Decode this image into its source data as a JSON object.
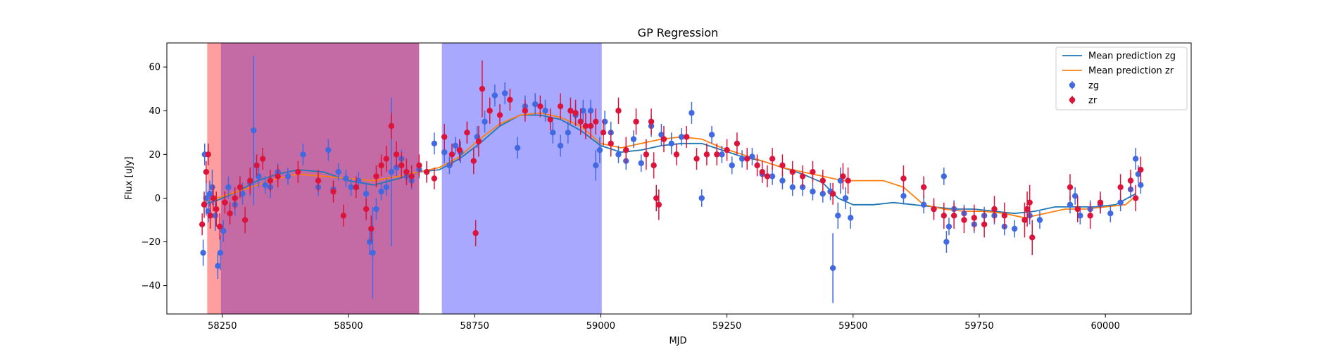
{
  "chart_data": {
    "type": "scatter",
    "title": "GP Regression",
    "xlabel": "MJD",
    "ylabel": "Flux [uJy]",
    "xlim": [
      58140,
      60170
    ],
    "ylim": [
      -53,
      71
    ],
    "xticks": [
      58250,
      58500,
      58750,
      59000,
      59250,
      59500,
      59750,
      60000
    ],
    "yticks": [
      -40,
      -20,
      0,
      20,
      40,
      60
    ],
    "grid": false,
    "legend_position": "top-right",
    "shaded_regions": [
      {
        "x0": 58220,
        "x1": 58247,
        "color": "#ff9e9e"
      },
      {
        "x0": 58247,
        "x1": 58640,
        "color": "#c46aa4"
      },
      {
        "x0": 58685,
        "x1": 59002,
        "color": "#a8a8ff"
      }
    ],
    "series": [
      {
        "name": "Mean prediction zg",
        "kind": "line",
        "color": "#1f77b4",
        "x": [
          58210,
          58240,
          58280,
          58320,
          58360,
          58400,
          58450,
          58500,
          58550,
          58600,
          58640,
          58680,
          58720,
          58760,
          58800,
          58840,
          58880,
          58920,
          58960,
          59000,
          59040,
          59080,
          59120,
          59160,
          59200,
          59240,
          59280,
          59320,
          59360,
          59400,
          59440,
          59470,
          59500,
          59540,
          59580,
          59620,
          59660,
          59700,
          59740,
          59780,
          59820,
          59860,
          59900,
          59940,
          59980,
          60020,
          60060
        ],
        "y": [
          -3,
          -1,
          3,
          8,
          11,
          13,
          12,
          8,
          6,
          9,
          12,
          13,
          18,
          25,
          33,
          38,
          38,
          36,
          31,
          24,
          21,
          22,
          24,
          25,
          25,
          22,
          19,
          17,
          14,
          11,
          7,
          0,
          -3,
          -3,
          -2,
          -3,
          -4,
          -5,
          -5,
          -6,
          -7,
          -6,
          -4,
          -4,
          -4,
          -3,
          2
        ]
      },
      {
        "name": "Mean prediction zr",
        "kind": "line",
        "color": "#ff7f0e",
        "x": [
          58210,
          58240,
          58280,
          58320,
          58360,
          58400,
          58450,
          58500,
          58550,
          58600,
          58640,
          58680,
          58720,
          58760,
          58800,
          58840,
          58880,
          58920,
          58960,
          59000,
          59040,
          59080,
          59120,
          59160,
          59200,
          59240,
          59280,
          59320,
          59360,
          59400,
          59440,
          59480,
          59520,
          59560,
          59600,
          59640,
          59680,
          59720,
          59760,
          59800,
          59840,
          59880,
          59920,
          59960,
          60000,
          60040,
          60060
        ],
        "y": [
          -2,
          0,
          3,
          6,
          9,
          11,
          10,
          9,
          8,
          10,
          12,
          14,
          19,
          27,
          34,
          38,
          39,
          37,
          33,
          25,
          23,
          25,
          27,
          28,
          27,
          23,
          20,
          17,
          14,
          12,
          10,
          8,
          8,
          8,
          5,
          -3,
          -5,
          -6,
          -6,
          -7,
          -9,
          -7,
          -5,
          -5,
          -4,
          -3,
          1
        ]
      },
      {
        "name": "zg",
        "kind": "errorbar",
        "color": "#4169e1",
        "x": [
          58212,
          58215,
          58218,
          58222,
          58225,
          58230,
          58236,
          58241,
          58246,
          58252,
          58262,
          58275,
          58290,
          58305,
          58312,
          58322,
          58335,
          58345,
          58360,
          58380,
          58410,
          58440,
          58460,
          58470,
          58480,
          58495,
          58505,
          58520,
          58535,
          58542,
          58548,
          58555,
          58565,
          58575,
          58585,
          58595,
          58605,
          58615,
          58625,
          58640,
          58655,
          58670,
          58690,
          58700,
          58712,
          58722,
          58735,
          58755,
          58770,
          58790,
          58810,
          58835,
          58850,
          58870,
          58890,
          58905,
          58920,
          58935,
          58950,
          58965,
          58980,
          58990,
          58998,
          59008,
          59020,
          59035,
          59050,
          59065,
          59080,
          59100,
          59120,
          59140,
          59160,
          59180,
          59200,
          59220,
          59240,
          59260,
          59280,
          59300,
          59320,
          59340,
          59360,
          59380,
          59400,
          59420,
          59440,
          59455,
          59460,
          59470,
          59475,
          59485,
          59495,
          59600,
          59640,
          59660,
          59680,
          59685,
          59690,
          59700,
          59720,
          59740,
          59760,
          59780,
          59800,
          59820,
          59850,
          59870,
          59930,
          59940,
          59950,
          59970,
          59990,
          60010,
          60030,
          60050,
          60060,
          60065,
          60070
        ],
        "y": [
          -25,
          20,
          0,
          -6,
          2,
          5,
          -8,
          -31,
          -25,
          -15,
          5,
          -3,
          2,
          7,
          31,
          10,
          6,
          5,
          12,
          10,
          20,
          5,
          22,
          4,
          12,
          9,
          5,
          8,
          2,
          -20,
          -25,
          -5,
          3,
          5,
          12,
          14,
          18,
          10,
          8,
          13,
          12,
          25,
          21,
          15,
          24,
          21,
          30,
          28,
          35,
          47,
          48,
          23,
          42,
          43,
          40,
          30,
          24,
          30,
          38,
          40,
          40,
          15,
          22,
          35,
          30,
          20,
          17,
          27,
          16,
          33,
          29,
          25,
          28,
          39,
          0,
          29,
          20,
          15,
          18,
          19,
          11,
          10,
          8,
          5,
          5,
          3,
          2,
          3,
          -32,
          -8,
          8,
          0,
          -9,
          1,
          -3,
          -5,
          10,
          -20,
          -13,
          -5,
          -7,
          -12,
          -8,
          -8,
          -13,
          -14,
          -8,
          -10,
          -3,
          1,
          -8,
          -5,
          -3,
          -7,
          -2,
          4,
          18,
          11,
          6
        ],
        "err": [
          6,
          5,
          8,
          5,
          6,
          8,
          7,
          6,
          8,
          5,
          5,
          5,
          5,
          6,
          34,
          5,
          4,
          5,
          4,
          4,
          5,
          4,
          5,
          4,
          4,
          4,
          4,
          4,
          5,
          6,
          21,
          5,
          4,
          4,
          34,
          4,
          4,
          4,
          4,
          4,
          4,
          5,
          5,
          4,
          4,
          5,
          5,
          5,
          5,
          5,
          5,
          5,
          5,
          5,
          5,
          5,
          5,
          5,
          5,
          5,
          5,
          7,
          6,
          5,
          5,
          4,
          4,
          4,
          4,
          5,
          5,
          5,
          4,
          5,
          4,
          4,
          4,
          4,
          4,
          4,
          4,
          4,
          4,
          4,
          4,
          4,
          4,
          4,
          16,
          6,
          6,
          5,
          5,
          4,
          4,
          4,
          4,
          5,
          4,
          4,
          4,
          4,
          4,
          4,
          4,
          4,
          4,
          4,
          4,
          4,
          4,
          4,
          4,
          4,
          4,
          4,
          5,
          4,
          4
        ]
      },
      {
        "name": "zr",
        "kind": "errorbar",
        "color": "#dc143c",
        "x": [
          58210,
          58214,
          58218,
          58222,
          58226,
          58232,
          58238,
          58245,
          58255,
          58265,
          58275,
          58285,
          58295,
          58305,
          58318,
          58330,
          58345,
          58360,
          58400,
          58440,
          58470,
          58490,
          58515,
          58535,
          58545,
          58555,
          58565,
          58575,
          58585,
          58595,
          58605,
          58615,
          58625,
          58640,
          58655,
          58670,
          58690,
          58705,
          58720,
          58735,
          58748,
          58752,
          58758,
          58765,
          58780,
          58800,
          58820,
          58850,
          58880,
          58900,
          58920,
          58940,
          58950,
          58960,
          58970,
          58980,
          58990,
          59005,
          59020,
          59035,
          59050,
          59070,
          59090,
          59100,
          59105,
          59110,
          59115,
          59125,
          59150,
          59170,
          59190,
          59210,
          59230,
          59250,
          59270,
          59290,
          59310,
          59320,
          59330,
          59340,
          59360,
          59380,
          59400,
          59420,
          59440,
          59460,
          59480,
          59490,
          59600,
          59640,
          59660,
          59680,
          59700,
          59720,
          59740,
          59760,
          59780,
          59800,
          59840,
          59845,
          59850,
          59855,
          59930,
          59945,
          59970,
          59990,
          60030,
          60050,
          60060,
          60070
        ],
        "y": [
          -12,
          -3,
          12,
          20,
          -8,
          0,
          -5,
          -13,
          -2,
          -7,
          0,
          5,
          -10,
          8,
          15,
          18,
          8,
          10,
          12,
          8,
          3,
          -8,
          5,
          -5,
          -14,
          10,
          15,
          18,
          33,
          20,
          15,
          12,
          10,
          15,
          12,
          9,
          28,
          20,
          22,
          30,
          17,
          -16,
          26,
          50,
          40,
          38,
          45,
          40,
          42,
          36,
          42,
          40,
          39,
          35,
          33,
          33,
          35,
          30,
          25,
          40,
          22,
          35,
          20,
          35,
          15,
          0,
          -3,
          27,
          20,
          28,
          18,
          20,
          20,
          22,
          25,
          18,
          15,
          12,
          10,
          18,
          15,
          12,
          10,
          12,
          8,
          2,
          10,
          8,
          9,
          5,
          -5,
          -8,
          -8,
          -10,
          -9,
          -12,
          -5,
          -8,
          -10,
          -5,
          -2,
          -18,
          5,
          -5,
          -8,
          -2,
          5,
          8,
          0,
          13
        ],
        "err": [
          5,
          6,
          5,
          5,
          6,
          6,
          8,
          6,
          5,
          5,
          5,
          5,
          6,
          6,
          5,
          5,
          5,
          5,
          5,
          5,
          5,
          5,
          5,
          5,
          6,
          5,
          5,
          6,
          6,
          6,
          6,
          6,
          5,
          5,
          5,
          5,
          6,
          5,
          5,
          5,
          6,
          6,
          7,
          13,
          6,
          5,
          5,
          5,
          5,
          5,
          6,
          6,
          6,
          6,
          6,
          6,
          6,
          6,
          6,
          6,
          6,
          6,
          7,
          6,
          6,
          6,
          7,
          6,
          5,
          5,
          5,
          5,
          5,
          5,
          5,
          5,
          5,
          5,
          5,
          5,
          5,
          5,
          5,
          5,
          5,
          5,
          6,
          6,
          6,
          5,
          5,
          6,
          6,
          6,
          6,
          6,
          6,
          6,
          8,
          8,
          8,
          8,
          6,
          6,
          6,
          5,
          6,
          5,
          6,
          6
        ]
      }
    ]
  }
}
